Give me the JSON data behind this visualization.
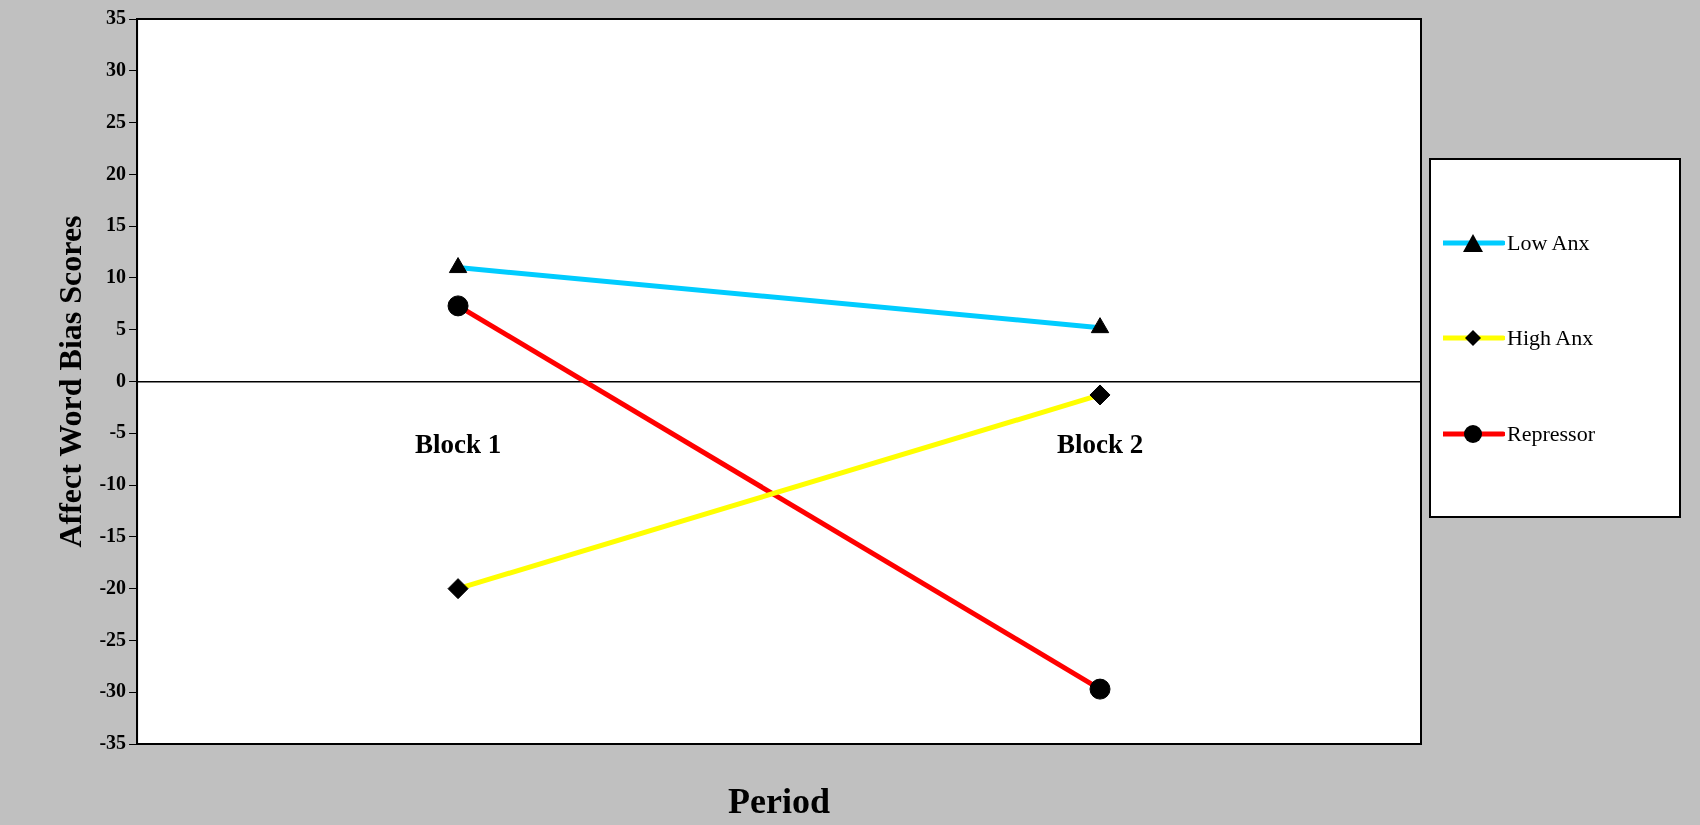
{
  "chart_data": {
    "type": "line",
    "xlabel": "Period",
    "ylabel": "Affect Word Bias Scores",
    "categories": [
      "Block 1",
      "Block 2"
    ],
    "series": [
      {
        "name": "Low Anx",
        "color": "#00ccff",
        "marker": "triangle",
        "values": [
          11,
          5.2
        ]
      },
      {
        "name": "High Anx",
        "color": "#ffff00",
        "marker": "diamond",
        "values": [
          -20,
          -1.3
        ]
      },
      {
        "name": "Repressor",
        "color": "#ff0000",
        "marker": "circle",
        "values": [
          7.3,
          -29.7
        ]
      }
    ],
    "ylim": [
      -35,
      35
    ],
    "yticks": [
      -35,
      -30,
      -25,
      -20,
      -15,
      -10,
      -5,
      0,
      5,
      10,
      15,
      20,
      25,
      30,
      35
    ],
    "grid": false,
    "legend": "right",
    "line_style": "solid"
  }
}
